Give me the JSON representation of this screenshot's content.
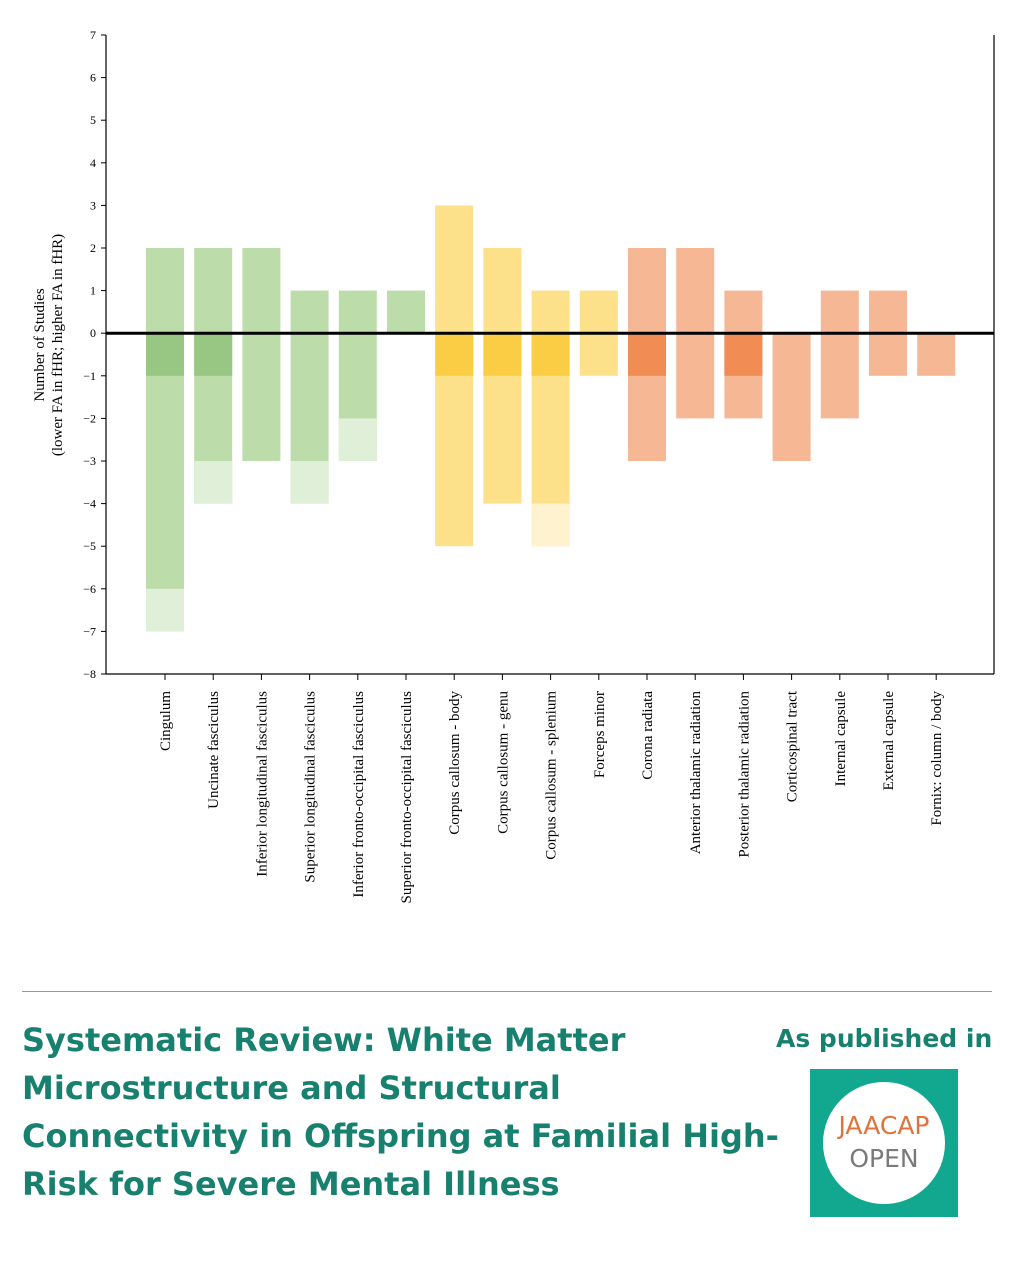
{
  "chart_data": {
    "type": "bar",
    "ylabel_line1": "Number of Studies",
    "ylabel_line2": "(lower FA in fHR; higher FA in fHR)",
    "ylim": [
      -8,
      7
    ],
    "yticks": [
      7,
      6,
      5,
      4,
      3,
      2,
      1,
      0,
      -1,
      -2,
      -3,
      -4,
      -5,
      -6,
      -7,
      -8
    ],
    "ytick_labels": [
      "7",
      "6",
      "5",
      "4",
      "3",
      "2",
      "1",
      "0",
      "−1",
      "−2",
      "−3",
      "−4",
      "−5",
      "−6",
      "−7",
      "−8"
    ],
    "categories": [
      "Cingulum",
      "Uncinate fasciculus",
      "Inferior longitudinal fasciculus",
      "Superior longitudinal fasciculus",
      "Inferior fronto-occipital fasciculus",
      "Superior fronto-occipital fasciculus",
      "Corpus callosum - body",
      "Corpus callosum - genu",
      "Corpus callosum - splenium",
      "Forceps minor",
      "Corona radiata",
      "Anterior thalamic radiation",
      "Posterior thalamic radiation",
      "Corticospinal tract",
      "Internal capsule",
      "External capsule",
      "Fornix: column / body"
    ],
    "groups": [
      "green",
      "green",
      "green",
      "green",
      "green",
      "green",
      "yellow",
      "yellow",
      "yellow",
      "yellow",
      "orange",
      "orange",
      "orange",
      "orange",
      "orange",
      "orange",
      "orange"
    ],
    "colors": {
      "green": {
        "main": "#bcdcaa",
        "dark": "#98c783",
        "light": "#e0efd7"
      },
      "yellow": {
        "main": "#fde08a",
        "dark": "#fbcd44",
        "light": "#fef2cf"
      },
      "orange": {
        "main": "#f5b794",
        "dark": "#f08c54",
        "light": "#fad8c4"
      }
    },
    "series": [
      {
        "values": [
          2,
          2,
          2,
          1,
          1,
          1,
          3,
          2,
          1,
          1,
          2,
          2,
          1,
          0,
          1,
          1,
          0
        ]
      },
      {
        "values": [
          -7,
          -4,
          -3,
          -4,
          -3,
          0,
          -5,
          -4,
          -5,
          -1,
          -3,
          -2,
          -2,
          -3,
          -2,
          -1,
          -1
        ]
      }
    ],
    "dark_band": [
      [
        0,
        -1
      ],
      [
        0,
        -1
      ],
      null,
      null,
      null,
      null,
      [
        0,
        -1
      ],
      [
        0,
        -1
      ],
      [
        0,
        -1
      ],
      null,
      [
        0,
        -1
      ],
      null,
      [
        0,
        -1
      ],
      null,
      null,
      null,
      null
    ],
    "light_band": [
      [
        -6,
        -7
      ],
      [
        -3,
        -4
      ],
      null,
      [
        -3,
        -4
      ],
      [
        -2,
        -3
      ],
      null,
      null,
      null,
      [
        -4,
        -5
      ],
      null,
      null,
      null,
      null,
      null,
      null,
      null,
      null
    ]
  },
  "footer": {
    "title": "Systematic Review: White Matter Microstructure and Structural Connectivity in Offspring at Familial High-Risk for Severe Mental Illness",
    "published_label": "As published in",
    "logo_line1": "JAACAP",
    "logo_line2": "OPEN"
  }
}
